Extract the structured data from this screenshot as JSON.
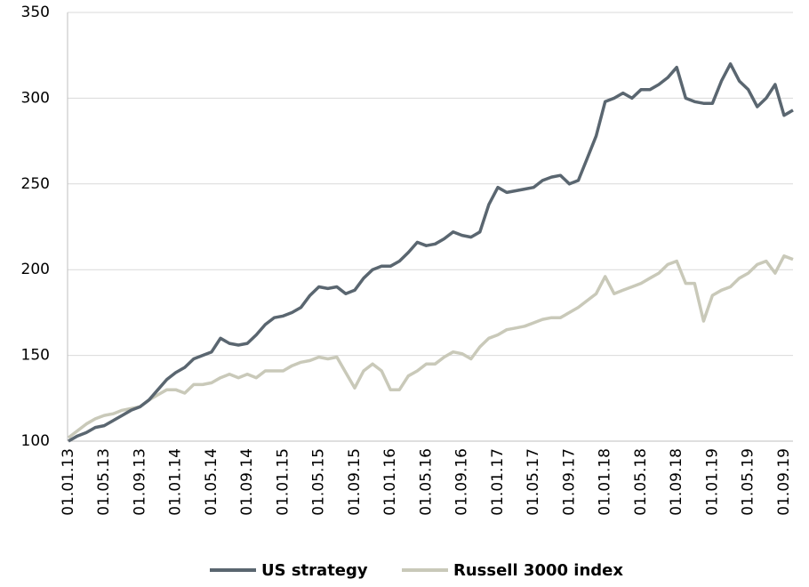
{
  "chart_data": {
    "type": "line",
    "categories": [
      "01.01.13",
      null,
      null,
      null,
      "01.05.13",
      null,
      null,
      null,
      "01.09.13",
      null,
      null,
      null,
      "01.01.14",
      null,
      null,
      null,
      "01.05.14",
      null,
      null,
      null,
      "01.09.14",
      null,
      null,
      null,
      "01.01.15",
      null,
      null,
      null,
      "01.05.15",
      null,
      null,
      null,
      "01.09.15",
      null,
      null,
      null,
      "01.01.16",
      null,
      null,
      null,
      "01.05.16",
      null,
      null,
      null,
      "01.09.16",
      null,
      null,
      null,
      "01.01.17",
      null,
      null,
      null,
      "01.05.17",
      null,
      null,
      null,
      "01.09.17",
      null,
      null,
      null,
      "01.01.18",
      null,
      null,
      null,
      "01.05.18",
      null,
      null,
      null,
      "01.09.18",
      null,
      null,
      null,
      "01.01.19",
      null,
      null,
      null,
      "01.05.19",
      null,
      null,
      null,
      "01.09.19",
      null
    ],
    "series": [
      {
        "name": "US strategy",
        "color": "#5a6670",
        "values": [
          100,
          103,
          105,
          108,
          109,
          112,
          115,
          118,
          120,
          124,
          130,
          136,
          140,
          143,
          148,
          150,
          152,
          160,
          157,
          156,
          157,
          162,
          168,
          172,
          173,
          175,
          178,
          185,
          190,
          189,
          190,
          186,
          188,
          195,
          200,
          202,
          202,
          205,
          210,
          216,
          214,
          215,
          218,
          222,
          220,
          219,
          222,
          238,
          248,
          245,
          246,
          247,
          248,
          252,
          254,
          255,
          250,
          252,
          265,
          278,
          298,
          300,
          303,
          300,
          305,
          305,
          308,
          312,
          318,
          300,
          298,
          297,
          297,
          310,
          320,
          310,
          305,
          295,
          300,
          308,
          290,
          293
        ]
      },
      {
        "name": "Russell 3000 index",
        "color": "#c9c9b9",
        "values": [
          102,
          106,
          110,
          113,
          115,
          116,
          118,
          119,
          120,
          124,
          127,
          130,
          130,
          128,
          133,
          133,
          134,
          137,
          139,
          137,
          139,
          137,
          141,
          141,
          141,
          144,
          146,
          147,
          149,
          148,
          149,
          140,
          131,
          141,
          145,
          141,
          130,
          130,
          138,
          141,
          145,
          145,
          149,
          152,
          151,
          148,
          155,
          160,
          162,
          165,
          166,
          167,
          169,
          171,
          172,
          172,
          175,
          178,
          182,
          186,
          196,
          186,
          188,
          190,
          192,
          195,
          198,
          203,
          205,
          192,
          192,
          170,
          185,
          188,
          190,
          195,
          198,
          203,
          205,
          198,
          208,
          206
        ]
      }
    ],
    "ylim": [
      100,
      350
    ],
    "yticks": [
      100,
      150,
      200,
      250,
      300,
      350
    ],
    "grid": true
  }
}
